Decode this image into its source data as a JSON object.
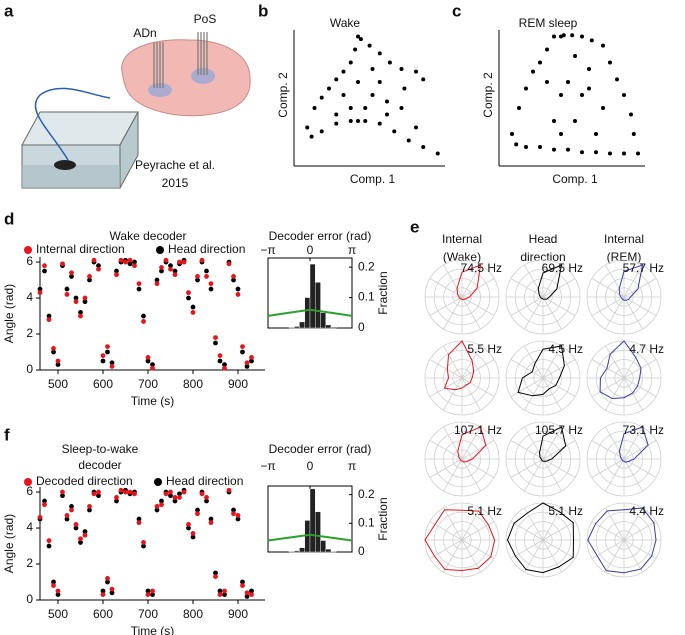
{
  "panel_letters": [
    "a",
    "b",
    "c",
    "d",
    "e",
    "f"
  ],
  "panel_a": {
    "labels": [
      "ADn",
      "PoS"
    ],
    "citation": [
      "Peyrache et al.",
      "2015"
    ]
  },
  "chart_data": [
    {
      "type": "scatter",
      "title": "Wake",
      "xlabel": "Comp. 1",
      "ylabel": "Comp. 2",
      "color": "#000000",
      "xlim": [
        0,
        1
      ],
      "ylim": [
        0,
        1
      ],
      "x": [
        0.4,
        0.38,
        0.35,
        0.3,
        0.25,
        0.2,
        0.15,
        0.1,
        0.05,
        0.08,
        0.15,
        0.25,
        0.35,
        0.45,
        0.55,
        0.65,
        0.75,
        0.85,
        0.95,
        0.8,
        0.7,
        0.72,
        0.85,
        0.8,
        0.7,
        0.62,
        0.55,
        0.48,
        0.42,
        0.3,
        0.4,
        0.5,
        0.6,
        0.35,
        0.45,
        0.55,
        0.25,
        0.5,
        0.4,
        0.6
      ],
      "values": [
        0.95,
        0.85,
        0.75,
        0.68,
        0.62,
        0.55,
        0.48,
        0.4,
        0.25,
        0.18,
        0.22,
        0.28,
        0.3,
        0.3,
        0.28,
        0.22,
        0.15,
        0.1,
        0.05,
        0.25,
        0.4,
        0.55,
        0.62,
        0.68,
        0.7,
        0.75,
        0.82,
        0.88,
        0.93,
        0.5,
        0.6,
        0.5,
        0.45,
        0.4,
        0.4,
        0.6,
        0.35,
        0.7,
        0.3,
        0.35
      ]
    },
    {
      "type": "scatter",
      "title": "REM sleep",
      "xlabel": "Comp. 1",
      "ylabel": "Comp. 2",
      "color": "#000000",
      "xlim": [
        0,
        1
      ],
      "ylim": [
        0,
        1
      ],
      "x": [
        0.35,
        0.3,
        0.25,
        0.2,
        0.15,
        0.1,
        0.05,
        0.08,
        0.15,
        0.25,
        0.35,
        0.45,
        0.55,
        0.65,
        0.75,
        0.85,
        0.95,
        0.92,
        0.9,
        0.85,
        0.8,
        0.75,
        0.7,
        0.62,
        0.55,
        0.48,
        0.42,
        0.4,
        0.3,
        0.4,
        0.5,
        0.6,
        0.7,
        0.35,
        0.45,
        0.55,
        0.65,
        0.5,
        0.4,
        0.6
      ],
      "values": [
        0.95,
        0.85,
        0.75,
        0.68,
        0.55,
        0.4,
        0.2,
        0.12,
        0.1,
        0.1,
        0.08,
        0.08,
        0.06,
        0.06,
        0.05,
        0.05,
        0.05,
        0.2,
        0.35,
        0.5,
        0.62,
        0.75,
        0.88,
        0.92,
        0.95,
        0.96,
        0.96,
        0.95,
        0.6,
        0.5,
        0.3,
        0.7,
        0.4,
        0.3,
        0.6,
        0.5,
        0.2,
        0.8,
        0.2,
        0.55
      ]
    },
    {
      "type": "timeseries",
      "title": [
        "Wake decoder"
      ],
      "xlabel": "Time (s)",
      "ylabel": "Angle (rad)",
      "xlim": [
        460,
        960
      ],
      "xticks": [
        500,
        600,
        700,
        800,
        900
      ],
      "ylim": [
        0,
        6.28
      ],
      "yticks": [
        0,
        2,
        4,
        6
      ],
      "x": [
        460,
        470,
        480,
        490,
        500,
        510,
        520,
        530,
        540,
        550,
        560,
        570,
        580,
        590,
        600,
        610,
        620,
        630,
        640,
        650,
        660,
        670,
        680,
        690,
        700,
        710,
        720,
        730,
        740,
        750,
        760,
        770,
        780,
        790,
        800,
        810,
        820,
        830,
        840,
        850,
        860,
        870,
        880,
        890,
        900,
        910,
        920,
        930
      ],
      "series": [
        {
          "name": "Internal direction",
          "color": "#e8141c",
          "values": [
            4.3,
            5.8,
            2.8,
            1.2,
            0.5,
            5.9,
            4.2,
            5.4,
            3.8,
            3.0,
            4.0,
            5.2,
            6.1,
            5.6,
            0.8,
            1.3,
            0.2,
            5.3,
            6.1,
            6.0,
            6.1,
            5.8,
            4.8,
            2.7,
            0.7,
            0.1,
            4.8,
            5.7,
            6.1,
            5.6,
            5.3,
            6.0,
            6.0,
            4.3,
            3.2,
            5.2,
            6.1,
            5.2,
            4.8,
            1.8,
            0.8,
            0.1,
            5.9,
            5.2,
            4.2,
            1.3,
            0.4,
            0.7
          ]
        },
        {
          "name": "Head direction",
          "color": "#000000",
          "values": [
            4.5,
            5.5,
            3.0,
            1.0,
            0.3,
            5.8,
            4.5,
            5.2,
            4.0,
            3.2,
            3.8,
            5.0,
            6.0,
            5.8,
            0.5,
            1.0,
            0.4,
            5.5,
            6.0,
            6.1,
            5.9,
            6.0,
            4.5,
            3.0,
            0.5,
            0.3,
            5.0,
            5.5,
            6.0,
            5.8,
            5.5,
            5.9,
            6.1,
            4.0,
            3.5,
            5.0,
            6.0,
            5.5,
            4.5,
            1.5,
            0.5,
            0.3,
            6.0,
            5.0,
            4.5,
            1.0,
            0.2,
            0.5
          ]
        }
      ]
    },
    {
      "type": "histogram",
      "title": "Decoder error (rad)",
      "ylabel": "Fraction",
      "color": "#222222",
      "xlim": [
        -3.14,
        3.14
      ],
      "xticks": [
        {
          "value": -3.14,
          "label": "−π"
        },
        0,
        {
          "value": 3.14,
          "label": "π"
        }
      ],
      "ylim": [
        0,
        0.23
      ],
      "yticks": [
        0,
        0.1,
        0.2
      ],
      "bins": [
        -3.14,
        -2.75,
        -2.36,
        -1.96,
        -1.57,
        -1.18,
        -0.79,
        -0.39,
        0,
        0.39,
        0.79,
        1.18,
        1.57,
        1.96,
        2.36,
        2.75,
        3.14
      ],
      "values": [
        0,
        0,
        0,
        0,
        0.002,
        0.005,
        0.02,
        0.1,
        0.21,
        0.15,
        0.05,
        0.01,
        0.003,
        0,
        0,
        0
      ],
      "curve": {
        "color": "#2ca02c",
        "x": [
          -3.14,
          -1.57,
          0,
          1.57,
          3.14
        ],
        "values": [
          0.04,
          0.05,
          0.06,
          0.05,
          0.04
        ]
      }
    },
    {
      "type": "timeseries",
      "title": [
        "Sleep-to-wake",
        "decoder"
      ],
      "xlabel": "Time (s)",
      "ylabel": "Angle (rad)",
      "xlim": [
        460,
        960
      ],
      "xticks": [
        500,
        600,
        700,
        800,
        900
      ],
      "ylim": [
        0,
        6.28
      ],
      "yticks": [
        0,
        2,
        4,
        6
      ],
      "x": [
        460,
        470,
        480,
        490,
        500,
        510,
        520,
        530,
        540,
        550,
        560,
        570,
        580,
        590,
        600,
        610,
        620,
        630,
        640,
        650,
        660,
        670,
        680,
        690,
        700,
        710,
        720,
        730,
        740,
        750,
        760,
        770,
        780,
        790,
        800,
        810,
        820,
        830,
        840,
        850,
        860,
        870,
        880,
        890,
        900,
        910,
        920,
        930
      ],
      "series": [
        {
          "name": "Decoded direction",
          "color": "#e8141c",
          "values": [
            4.6,
            5.3,
            3.3,
            0.8,
            0.5,
            6.0,
            4.7,
            5.0,
            4.2,
            3.4,
            3.6,
            5.2,
            5.9,
            6.0,
            0.3,
            1.2,
            0.6,
            5.7,
            6.1,
            6.0,
            6.0,
            5.9,
            4.3,
            3.2,
            0.3,
            0.5,
            5.2,
            5.3,
            5.9,
            6.0,
            5.7,
            5.7,
            6.0,
            4.2,
            3.7,
            4.8,
            5.9,
            5.7,
            4.3,
            1.3,
            0.3,
            0.5,
            6.1,
            4.8,
            4.7,
            0.8,
            0.4,
            0.3
          ]
        },
        {
          "name": "Head direction",
          "color": "#000000",
          "values": [
            4.5,
            5.5,
            3.0,
            1.0,
            0.3,
            5.8,
            4.5,
            5.2,
            4.0,
            3.2,
            3.8,
            5.0,
            6.0,
            5.8,
            0.5,
            1.0,
            0.4,
            5.5,
            6.0,
            6.1,
            5.9,
            6.0,
            4.5,
            3.0,
            0.5,
            0.3,
            5.0,
            5.5,
            6.0,
            5.8,
            5.5,
            5.9,
            6.1,
            4.0,
            3.5,
            5.0,
            6.0,
            5.5,
            4.5,
            1.5,
            0.5,
            0.3,
            6.0,
            5.0,
            4.5,
            1.0,
            0.2,
            0.5
          ]
        }
      ]
    },
    {
      "type": "histogram",
      "title": "Decoder error (rad)",
      "ylabel": "Fraction",
      "color": "#222222",
      "xlim": [
        -3.14,
        3.14
      ],
      "xticks": [
        {
          "value": -3.14,
          "label": "−π"
        },
        0,
        {
          "value": 3.14,
          "label": "π"
        }
      ],
      "ylim": [
        0,
        0.23
      ],
      "yticks": [
        0,
        0.1,
        0.2
      ],
      "bins": [
        -3.14,
        -2.75,
        -2.36,
        -1.96,
        -1.57,
        -1.18,
        -0.79,
        -0.39,
        0,
        0.39,
        0.79,
        1.18,
        1.57,
        1.96,
        2.36,
        2.75,
        3.14
      ],
      "values": [
        0,
        0,
        0,
        0,
        0.002,
        0.004,
        0.015,
        0.11,
        0.22,
        0.14,
        0.04,
        0.01,
        0.002,
        0,
        0,
        0
      ],
      "curve": {
        "color": "#2ca02c",
        "x": [
          -3.14,
          -1.57,
          0,
          1.57,
          3.14
        ],
        "values": [
          0.04,
          0.05,
          0.06,
          0.05,
          0.04
        ]
      }
    },
    {
      "type": "polar",
      "columns": [
        [
          "Internal",
          "(Wake)"
        ],
        [
          "Head",
          "direction"
        ],
        [
          "Internal",
          "(REM)"
        ]
      ],
      "column_colors": [
        "#e8141c",
        "#000000",
        "#3a3aa8"
      ],
      "cells": [
        [
          {
            "label": "74.5 Hz",
            "rmax": 74.5,
            "values": [
              15,
              35,
              74.5,
              50,
              20,
              10,
              6,
              5,
              4,
              5,
              6,
              8
            ]
          },
          {
            "label": "69.5 Hz",
            "rmax": 69.5,
            "values": [
              12,
              30,
              69.5,
              45,
              18,
              8,
              5,
              4,
              3,
              4,
              5,
              8
            ]
          },
          {
            "label": "57.7 Hz",
            "rmax": 57.7,
            "values": [
              10,
              25,
              57.7,
              40,
              15,
              8,
              5,
              4,
              4,
              5,
              6,
              8
            ]
          }
        ],
        [
          {
            "label": "5.5 Hz",
            "rmax": 5.5,
            "values": [
              1.5,
              2,
              3,
              5.5,
              4,
              2.5,
              2,
              3,
              2,
              1.5,
              1.2,
              1.4
            ]
          },
          {
            "label": "4.5 Hz",
            "rmax": 4.5,
            "values": [
              2,
              3,
              4.5,
              3.5,
              2,
              1.5,
              2.5,
              3.5,
              2.5,
              2,
              1.5,
              1.8
            ]
          },
          {
            "label": "4.7 Hz",
            "rmax": 4.7,
            "values": [
              2,
              2.5,
              3,
              4.7,
              3.5,
              2.5,
              3,
              3.5,
              3,
              2.5,
              2.2,
              2
            ]
          }
        ],
        [
          {
            "label": "107.1 Hz",
            "rmax": 107.1,
            "values": [
              30,
              80,
              107.1,
              70,
              25,
              10,
              6,
              5,
              5,
              6,
              10,
              15
            ]
          },
          {
            "label": "105.7 Hz",
            "rmax": 105.7,
            "values": [
              25,
              75,
              105.7,
              65,
              20,
              10,
              5,
              5,
              5,
              6,
              8,
              12
            ]
          },
          {
            "label": "73.1 Hz",
            "rmax": 73.1,
            "values": [
              20,
              55,
              73.1,
              50,
              18,
              8,
              5,
              4,
              4,
              5,
              7,
              10
            ]
          }
        ],
        [
          {
            "label": "5.1 Hz",
            "rmax": 5.1,
            "values": [
              4.5,
              4.2,
              4.6,
              4.1,
              4.8,
              4.3,
              5.1,
              4.4,
              4.7,
              4.2,
              4.5,
              4.6
            ]
          },
          {
            "label": "5.1 Hz",
            "rmax": 5.1,
            "values": [
              4.2,
              4.8,
              4.5,
              5.1,
              4.3,
              4.6,
              4.9,
              4.4,
              4.7,
              4.5,
              4.3,
              4.8
            ]
          },
          {
            "label": "4.4 Hz",
            "rmax": 4.4,
            "values": [
              3.8,
              4.1,
              4.4,
              3.6,
              4.0,
              3.9,
              4.3,
              3.7,
              4.2,
              3.9,
              4.0,
              3.8
            ]
          }
        ]
      ]
    }
  ]
}
